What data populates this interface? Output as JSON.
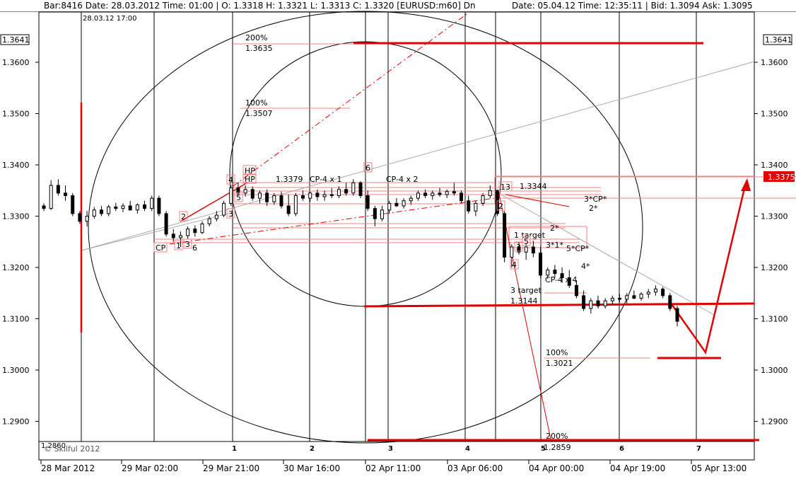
{
  "header": {
    "left": "Bar:8416 Date:  28.03.2012  Time:  01:00 | O:  1.3318  H:  1.3321  L:  1.3313  C:  1.3320  [EURUSD:m60]  Dn",
    "right": "Date:  05.04.12  Time:  12:35:11  | Bid:  1.3094  Ask:  1.3095"
  },
  "chart_data": {
    "type": "candlestick",
    "symbol": "EURUSD",
    "timeframe": "m60",
    "ylim": [
      1.286,
      1.366
    ],
    "y_ticks": [
      "1.3600",
      "1.3500",
      "1.3400",
      "1.3300",
      "1.3200",
      "1.3100",
      "1.3000",
      "1.2900"
    ],
    "x_ticks": [
      "28 Mar 2012",
      "29 Mar 02:00",
      "29 Mar 21:00",
      "30 Mar 16:00",
      "02 Apr 11:00",
      "03 Apr 06:00",
      "04 Apr 00:00",
      "04 Apr 19:00",
      "05 Apr 13:00"
    ],
    "cycle_numbers": [
      "1",
      "2",
      "3",
      "4",
      "5",
      "6",
      "7"
    ],
    "top_time_label": "28.03.12 17:00",
    "price_left_top": "1.3641",
    "price_right_top": "1.3641",
    "current_price_label": "1.3375",
    "bottom_left_price": "1.2860",
    "copyright": "© Skilful 2012",
    "annotations": [
      {
        "id": "lvl200top",
        "text": "200%"
      },
      {
        "id": "lvl200top_v",
        "text": "1.3635"
      },
      {
        "id": "lvl100top",
        "text": "100%"
      },
      {
        "id": "lvl100top_v",
        "text": "1.3507"
      },
      {
        "id": "hp1",
        "text": "HP"
      },
      {
        "id": "hp2",
        "text": "HP"
      },
      {
        "id": "p1379",
        "text": "1.3379"
      },
      {
        "id": "cp4x1",
        "text": "CP-4 x 1"
      },
      {
        "id": "cp4x2",
        "text": "CP-4 x 2"
      },
      {
        "id": "n6",
        "text": "6"
      },
      {
        "id": "n4a",
        "text": "4"
      },
      {
        "id": "n5a",
        "text": "5"
      },
      {
        "id": "n3a",
        "text": "3"
      },
      {
        "id": "n2a",
        "text": "2"
      },
      {
        "id": "cpa",
        "text": "CP"
      },
      {
        "id": "n1a",
        "text": "1"
      },
      {
        "id": "n3b",
        "text": "3"
      },
      {
        "id": "n6b",
        "text": "6"
      },
      {
        "id": "p3344",
        "text": "1.3344"
      },
      {
        "id": "n13",
        "text": "13"
      },
      {
        "id": "n2b",
        "text": "2"
      },
      {
        "id": "star3cp",
        "text": "3*CP*"
      },
      {
        "id": "star2a",
        "text": "2*"
      },
      {
        "id": "star2b",
        "text": "2*"
      },
      {
        "id": "target1",
        "text": "1 target"
      },
      {
        "id": "n5b",
        "text": "5"
      },
      {
        "id": "n3c",
        "text": "3"
      },
      {
        "id": "star31",
        "text": "3*1*"
      },
      {
        "id": "star5cp",
        "text": "5*CP*"
      },
      {
        "id": "n4b",
        "text": "4"
      },
      {
        "id": "star4",
        "text": "4*"
      },
      {
        "id": "cp4x4",
        "text": "CP-4 x 4"
      },
      {
        "id": "target3",
        "text": "3 target"
      },
      {
        "id": "p3144",
        "text": "1.3144"
      },
      {
        "id": "lvl100bot",
        "text": "100%"
      },
      {
        "id": "lvl100bot_v",
        "text": "1.3021"
      },
      {
        "id": "lvl200bot",
        "text": "200%"
      },
      {
        "id": "lvl200bot_v",
        "text": "1.2859"
      }
    ],
    "candles": [
      [
        1.332,
        1.3325,
        1.331,
        1.3315
      ],
      [
        1.3315,
        1.337,
        1.3312,
        1.336
      ],
      [
        1.336,
        1.3372,
        1.334,
        1.3345
      ],
      [
        1.3345,
        1.336,
        1.333,
        1.334
      ],
      [
        1.334,
        1.3345,
        1.33,
        1.3305
      ],
      [
        1.3305,
        1.331,
        1.3285,
        1.329
      ],
      [
        1.329,
        1.331,
        1.328,
        1.33
      ],
      [
        1.33,
        1.3318,
        1.3295,
        1.3312
      ],
      [
        1.3312,
        1.332,
        1.33,
        1.3305
      ],
      [
        1.3305,
        1.3322,
        1.33,
        1.3318
      ],
      [
        1.3318,
        1.3326,
        1.331,
        1.3315
      ],
      [
        1.3315,
        1.3325,
        1.3308,
        1.332
      ],
      [
        1.332,
        1.333,
        1.3315,
        1.3312
      ],
      [
        1.3312,
        1.3325,
        1.3305,
        1.3322
      ],
      [
        1.3322,
        1.333,
        1.331,
        1.3315
      ],
      [
        1.3315,
        1.334,
        1.331,
        1.3335
      ],
      [
        1.3335,
        1.334,
        1.33,
        1.3305
      ],
      [
        1.3305,
        1.331,
        1.326,
        1.3265
      ],
      [
        1.3265,
        1.3275,
        1.325,
        1.3258
      ],
      [
        1.3258,
        1.327,
        1.324,
        1.3262
      ],
      [
        1.3262,
        1.328,
        1.3255,
        1.3275
      ],
      [
        1.3275,
        1.3282,
        1.326,
        1.3268
      ],
      [
        1.3268,
        1.329,
        1.3265,
        1.3285
      ],
      [
        1.3285,
        1.33,
        1.328,
        1.3295
      ],
      [
        1.3295,
        1.331,
        1.329,
        1.3302
      ],
      [
        1.3302,
        1.333,
        1.3298,
        1.3325
      ],
      [
        1.3325,
        1.336,
        1.332,
        1.3355
      ],
      [
        1.3355,
        1.3365,
        1.334,
        1.3345
      ],
      [
        1.3345,
        1.336,
        1.3338,
        1.3352
      ],
      [
        1.3352,
        1.3358,
        1.333,
        1.3335
      ],
      [
        1.3335,
        1.335,
        1.3325,
        1.3345
      ],
      [
        1.3345,
        1.3352,
        1.332,
        1.3328
      ],
      [
        1.3328,
        1.3345,
        1.3322,
        1.334
      ],
      [
        1.334,
        1.3348,
        1.3315,
        1.332
      ],
      [
        1.332,
        1.3342,
        1.33,
        1.3305
      ],
      [
        1.3305,
        1.3345,
        1.33,
        1.334
      ],
      [
        1.334,
        1.335,
        1.333,
        1.3335
      ],
      [
        1.3335,
        1.3348,
        1.3328,
        1.3345
      ],
      [
        1.3345,
        1.3352,
        1.333,
        1.3338
      ],
      [
        1.3338,
        1.335,
        1.333,
        1.3342
      ],
      [
        1.3342,
        1.3355,
        1.3335,
        1.334
      ],
      [
        1.334,
        1.3358,
        1.3335,
        1.3352
      ],
      [
        1.3352,
        1.3365,
        1.334,
        1.3345
      ],
      [
        1.3345,
        1.3372,
        1.334,
        1.3365
      ],
      [
        1.3365,
        1.3368,
        1.3335,
        1.334
      ],
      [
        1.334,
        1.335,
        1.331,
        1.3315
      ],
      [
        1.3315,
        1.332,
        1.328,
        1.3295
      ],
      [
        1.3295,
        1.332,
        1.329,
        1.3312
      ],
      [
        1.3312,
        1.333,
        1.3305,
        1.3325
      ],
      [
        1.3325,
        1.3335,
        1.3318,
        1.332
      ],
      [
        1.332,
        1.3335,
        1.3315,
        1.333
      ],
      [
        1.333,
        1.334,
        1.3322,
        1.3335
      ],
      [
        1.3335,
        1.335,
        1.333,
        1.3345
      ],
      [
        1.3345,
        1.3352,
        1.3335,
        1.334
      ],
      [
        1.334,
        1.335,
        1.3332,
        1.3345
      ],
      [
        1.3345,
        1.3355,
        1.3338,
        1.3342
      ],
      [
        1.3342,
        1.3352,
        1.3335,
        1.3348
      ],
      [
        1.3348,
        1.3365,
        1.334,
        1.3345
      ],
      [
        1.3345,
        1.335,
        1.3325,
        1.333
      ],
      [
        1.333,
        1.334,
        1.3305,
        1.331
      ],
      [
        1.331,
        1.333,
        1.33,
        1.3325
      ],
      [
        1.3325,
        1.3345,
        1.332,
        1.334
      ],
      [
        1.334,
        1.336,
        1.3335,
        1.335
      ],
      [
        1.335,
        1.3352,
        1.33,
        1.3305
      ],
      [
        1.3305,
        1.331,
        1.321,
        1.322
      ],
      [
        1.322,
        1.3245,
        1.32,
        1.324
      ],
      [
        1.324,
        1.325,
        1.3225,
        1.323
      ],
      [
        1.323,
        1.3245,
        1.3215,
        1.324
      ],
      [
        1.324,
        1.3252,
        1.322,
        1.3228
      ],
      [
        1.3228,
        1.324,
        1.318,
        1.3185
      ],
      [
        1.3185,
        1.32,
        1.3178,
        1.3195
      ],
      [
        1.3195,
        1.3205,
        1.318,
        1.3188
      ],
      [
        1.3188,
        1.32,
        1.317,
        1.318
      ],
      [
        1.318,
        1.3195,
        1.316,
        1.3165
      ],
      [
        1.3165,
        1.3175,
        1.314,
        1.3145
      ],
      [
        1.3145,
        1.3155,
        1.3115,
        1.312
      ],
      [
        1.312,
        1.314,
        1.311,
        1.3135
      ],
      [
        1.3135,
        1.3145,
        1.312,
        1.3125
      ],
      [
        1.3125,
        1.314,
        1.312,
        1.3135
      ],
      [
        1.3135,
        1.3145,
        1.3128,
        1.314
      ],
      [
        1.314,
        1.3148,
        1.3132,
        1.3138
      ],
      [
        1.3138,
        1.315,
        1.313,
        1.3145
      ],
      [
        1.3145,
        1.3155,
        1.3138,
        1.314
      ],
      [
        1.314,
        1.3152,
        1.3135,
        1.3148
      ],
      [
        1.3148,
        1.3158,
        1.314,
        1.3152
      ],
      [
        1.3152,
        1.3165,
        1.3145,
        1.3158
      ],
      [
        1.3158,
        1.3162,
        1.314,
        1.3145
      ],
      [
        1.3145,
        1.315,
        1.3115,
        1.312
      ],
      [
        1.312,
        1.3125,
        1.3085,
        1.3095
      ]
    ]
  }
}
